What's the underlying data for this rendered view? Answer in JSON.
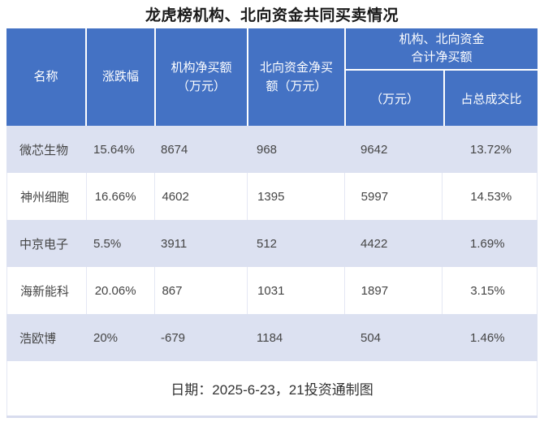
{
  "title": "龙虎榜机构、北向资金共同买卖情况",
  "table": {
    "headers": {
      "name": "名称",
      "change": "涨跌幅",
      "inst_l1": "机构净买额",
      "inst_l2": "（万元）",
      "north_l1": "北向资金净买",
      "north_l2": "额（万元）",
      "group_l1": "机构、北向资金",
      "group_l2": "合计净买额",
      "sub_amount": "（万元）",
      "sub_ratio": "占总成交比"
    },
    "rows": [
      {
        "name": "微芯生物",
        "change": "15.64%",
        "inst": "8674",
        "north": "968",
        "total": "9642",
        "ratio": "13.72%"
      },
      {
        "name": "神州细胞",
        "change": "16.66%",
        "inst": "4602",
        "north": "1395",
        "total": "5997",
        "ratio": "14.53%"
      },
      {
        "name": "中京电子",
        "change": "5.5%",
        "inst": "3911",
        "north": "512",
        "total": "4422",
        "ratio": "1.69%"
      },
      {
        "name": "海新能科",
        "change": "20.06%",
        "inst": "867",
        "north": "1031",
        "total": "1897",
        "ratio": "3.15%"
      },
      {
        "name": "浩欧博",
        "change": "20%",
        "inst": "-679",
        "north": "1184",
        "total": "504",
        "ratio": "1.46%"
      }
    ],
    "footer": "日期：2025-6-23，21投资通制图"
  },
  "colors": {
    "header_bg": "#4472c4",
    "header_text": "#ffffff",
    "row_alt_bg": "#dce1f1",
    "row_bg": "#ffffff",
    "body_text": "#454545",
    "grid_line": "#e4e7f4",
    "outer_border": "#d8dcee",
    "title_text": "#1a1a1a"
  },
  "chart_data": {
    "type": "table",
    "title": "龙虎榜机构、北向资金共同买卖情况",
    "columns": [
      "名称",
      "涨跌幅",
      "机构净买额（万元）",
      "北向资金净买额（万元）",
      "机构、北向资金合计净买额（万元）",
      "机构、北向资金合计净买额占总成交比"
    ],
    "rows": [
      [
        "微芯生物",
        "15.64%",
        8674,
        968,
        9642,
        "13.72%"
      ],
      [
        "神州细胞",
        "16.66%",
        4602,
        1395,
        5997,
        "14.53%"
      ],
      [
        "中京电子",
        "5.5%",
        3911,
        512,
        4422,
        "1.69%"
      ],
      [
        "海新能科",
        "20.06%",
        867,
        1031,
        1897,
        "3.15%"
      ],
      [
        "浩欧博",
        "20%",
        -679,
        1184,
        504,
        "1.46%"
      ]
    ],
    "note": "日期：2025-6-23，21投资通制图",
    "layout": {
      "zebra_striping": true,
      "header_merged_last_two_columns": true
    }
  }
}
